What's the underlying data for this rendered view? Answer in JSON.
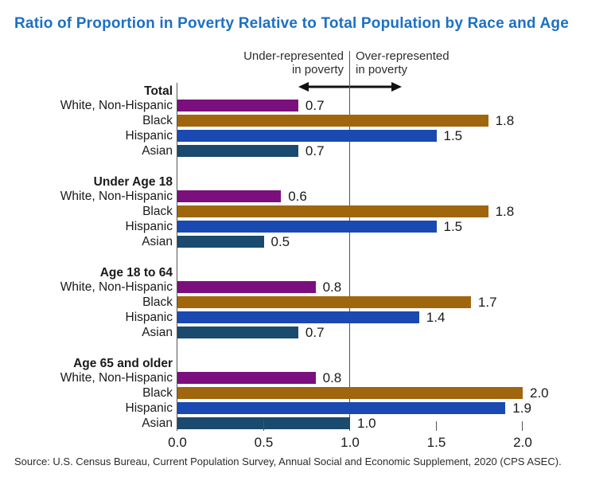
{
  "title_color": "#1C70C4",
  "annotation": {
    "under_line1": "Under-represented",
    "under_line2": "in poverty",
    "over_line1": "Over-represented",
    "over_line2": "in poverty",
    "arrow_icon": "double-headed-horizontal-arrow"
  },
  "chart_data": {
    "type": "bar",
    "orientation": "horizontal",
    "title": "Ratio of Proportion in Poverty Relative to Total Population by Race and Age",
    "categories": [
      "White, Non-Hispanic",
      "Black",
      "Hispanic",
      "Asian"
    ],
    "bar_colors": [
      "#7B0F7D",
      "#A0660E",
      "#1B49B2",
      "#1A4A6D"
    ],
    "groups": [
      {
        "label": "Total",
        "values": [
          0.7,
          1.8,
          1.5,
          0.7
        ]
      },
      {
        "label": "Under Age 18",
        "values": [
          0.6,
          1.8,
          1.5,
          0.5
        ]
      },
      {
        "label": "Age 18 to 64",
        "values": [
          0.8,
          1.7,
          1.4,
          0.7
        ]
      },
      {
        "label": "Age 65 and older",
        "values": [
          0.8,
          2.0,
          1.9,
          1.0
        ]
      }
    ],
    "xlim": [
      0,
      2.0
    ],
    "x_ticks": [
      "0.0",
      "0.5",
      "1.0",
      "1.5",
      "2.0"
    ],
    "reference_line": {
      "x": 1.0,
      "left_label": "Under-represented in poverty",
      "right_label": "Over-represented in poverty"
    },
    "value_label_format": "one-decimal",
    "grid": false,
    "legend": "none",
    "xlabel": "",
    "ylabel": ""
  },
  "source": {
    "text": "Source: U.S. Census Bureau, Current Population Survey, Annual Social and Economic Supplement, 2020 (CPS ASEC)."
  },
  "colors": {
    "axis_line": "#555555",
    "text": "#1A1A1A",
    "annotation_text": "#2D2D2D",
    "arrow": "#111111"
  }
}
